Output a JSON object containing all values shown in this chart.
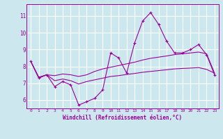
{
  "xlabel": "Windchill (Refroidissement éolien,°C)",
  "background_color": "#cce8ee",
  "grid_color": "#ffffff",
  "line_color": "#990099",
  "xlim": [
    -0.5,
    23.5
  ],
  "ylim": [
    5.5,
    11.7
  ],
  "yticks": [
    6,
    7,
    8,
    9,
    10,
    11
  ],
  "xticks": [
    0,
    1,
    2,
    3,
    4,
    5,
    6,
    7,
    8,
    9,
    10,
    11,
    12,
    13,
    14,
    15,
    16,
    17,
    18,
    19,
    20,
    21,
    22,
    23
  ],
  "line1_x": [
    0,
    1,
    2,
    3,
    4,
    5,
    6,
    7,
    8,
    9,
    10,
    11,
    12,
    13,
    14,
    15,
    16,
    17,
    18,
    19,
    20,
    21,
    22,
    23
  ],
  "line1_y": [
    8.3,
    7.3,
    7.5,
    6.8,
    7.1,
    6.9,
    5.7,
    5.9,
    6.1,
    6.6,
    8.8,
    8.5,
    7.6,
    9.4,
    10.7,
    11.2,
    10.5,
    9.5,
    8.8,
    8.8,
    9.0,
    9.3,
    8.7,
    7.5
  ],
  "line2_x": [
    0,
    1,
    2,
    3,
    4,
    5,
    6,
    7,
    8,
    9,
    10,
    11,
    12,
    13,
    14,
    15,
    16,
    17,
    18,
    19,
    20,
    21,
    22,
    23
  ],
  "line2_y": [
    8.3,
    7.35,
    7.5,
    7.45,
    7.55,
    7.5,
    7.4,
    7.5,
    7.7,
    7.85,
    7.95,
    8.05,
    8.15,
    8.25,
    8.38,
    8.48,
    8.55,
    8.62,
    8.7,
    8.75,
    8.8,
    8.85,
    8.75,
    7.6
  ],
  "line3_x": [
    0,
    1,
    2,
    3,
    4,
    5,
    6,
    7,
    8,
    9,
    10,
    11,
    12,
    13,
    14,
    15,
    16,
    17,
    18,
    19,
    20,
    21,
    22,
    23
  ],
  "line3_y": [
    8.3,
    7.35,
    7.5,
    7.15,
    7.25,
    7.15,
    6.95,
    7.1,
    7.2,
    7.3,
    7.4,
    7.45,
    7.52,
    7.58,
    7.65,
    7.7,
    7.75,
    7.8,
    7.85,
    7.88,
    7.9,
    7.93,
    7.82,
    7.6
  ]
}
